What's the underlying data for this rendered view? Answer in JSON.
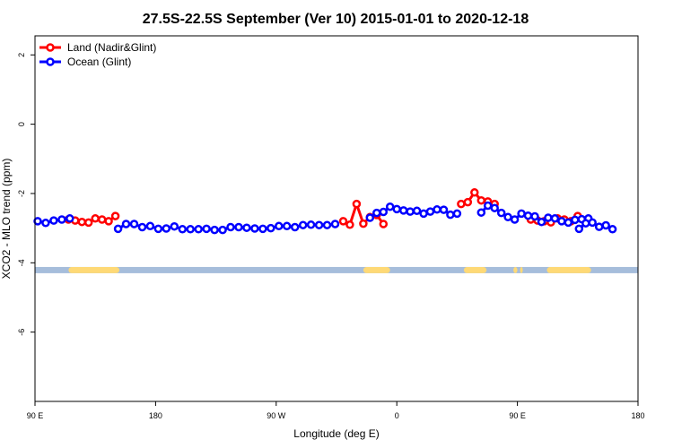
{
  "chart_data": {
    "type": "line",
    "title": "27.5S-22.5S September (Ver 10)   2015-01-01 to 2020-12-18",
    "xlabel": "Longitude (deg E)",
    "ylabel": "XCO2 - MLO trend (ppm)",
    "x_axis": {
      "range": [
        90,
        450
      ],
      "ticks": [
        {
          "value": 90,
          "label": "90 E"
        },
        {
          "value": 180,
          "label": "180"
        },
        {
          "value": 270,
          "label": "90 W"
        },
        {
          "value": 360,
          "label": "0"
        },
        {
          "value": 450,
          "label": "90 E"
        },
        {
          "value": 540,
          "label": "180"
        }
      ]
    },
    "y_axis": {
      "range": [
        -8,
        2.5
      ],
      "ticks": [
        {
          "value": 2,
          "label": "2"
        },
        {
          "value": 0,
          "label": "0"
        },
        {
          "value": -2,
          "label": "-2"
        },
        {
          "value": -4,
          "label": "-4"
        },
        {
          "value": -6,
          "label": "-6"
        }
      ]
    },
    "x_range": [
      90,
      540
    ],
    "y_range": [
      -8.0,
      2.55
    ],
    "grid": false,
    "legend_position": "top-left",
    "series": [
      {
        "name": "Land (Nadir&Glint)",
        "color": "#ff0000",
        "segments": [
          [
            [
              115,
              -2.75
            ],
            [
              120,
              -2.78
            ],
            [
              125,
              -2.82
            ],
            [
              130,
              -2.84
            ],
            [
              135,
              -2.72
            ],
            [
              140,
              -2.75
            ],
            [
              145,
              -2.8
            ],
            [
              150,
              -2.65
            ]
          ],
          [
            [
              320,
              -2.8
            ],
            [
              325,
              -2.9
            ],
            [
              330,
              -2.3
            ],
            [
              335,
              -2.87
            ],
            [
              340,
              -2.68
            ],
            [
              345,
              -2.62
            ],
            [
              350,
              -2.88
            ]
          ],
          [
            [
              408,
              -2.3
            ],
            [
              413,
              -2.25
            ],
            [
              418,
              -1.97
            ],
            [
              423,
              -2.2
            ],
            [
              428,
              -2.23
            ],
            [
              433,
              -2.3
            ]
          ],
          [
            [
              460,
              -2.75
            ],
            [
              465,
              -2.78
            ],
            [
              470,
              -2.8
            ],
            [
              475,
              -2.83
            ],
            [
              480,
              -2.72
            ],
            [
              485,
              -2.75
            ],
            [
              490,
              -2.8
            ],
            [
              495,
              -2.65
            ]
          ]
        ]
      },
      {
        "name": "Ocean (Glint)",
        "color": "#0000ff",
        "segments": [
          [
            [
              92,
              -2.8
            ],
            [
              98,
              -2.85
            ],
            [
              104,
              -2.78
            ],
            [
              110,
              -2.75
            ],
            [
              116,
              -2.72
            ]
          ],
          [
            [
              152,
              -3.02
            ],
            [
              158,
              -2.88
            ],
            [
              164,
              -2.88
            ],
            [
              170,
              -2.97
            ],
            [
              176,
              -2.94
            ],
            [
              182,
              -3.02
            ],
            [
              188,
              -3.01
            ],
            [
              194,
              -2.95
            ],
            [
              200,
              -3.03
            ],
            [
              206,
              -3.03
            ],
            [
              212,
              -3.03
            ],
            [
              218,
              -3.02
            ],
            [
              224,
              -3.05
            ],
            [
              230,
              -3.05
            ],
            [
              236,
              -2.97
            ],
            [
              242,
              -2.97
            ],
            [
              248,
              -2.99
            ],
            [
              254,
              -3.01
            ],
            [
              260,
              -3.02
            ],
            [
              266,
              -3.0
            ],
            [
              272,
              -2.94
            ],
            [
              278,
              -2.94
            ],
            [
              284,
              -2.97
            ],
            [
              290,
              -2.91
            ],
            [
              296,
              -2.9
            ],
            [
              302,
              -2.91
            ],
            [
              308,
              -2.91
            ],
            [
              314,
              -2.88
            ]
          ],
          [
            [
              340,
              -2.7
            ],
            [
              345,
              -2.56
            ],
            [
              350,
              -2.53
            ],
            [
              355,
              -2.38
            ],
            [
              360,
              -2.45
            ],
            [
              365,
              -2.49
            ],
            [
              370,
              -2.52
            ],
            [
              375,
              -2.5
            ],
            [
              380,
              -2.58
            ],
            [
              385,
              -2.52
            ],
            [
              390,
              -2.46
            ],
            [
              395,
              -2.47
            ],
            [
              400,
              -2.61
            ],
            [
              405,
              -2.58
            ]
          ],
          [
            [
              423,
              -2.55
            ],
            [
              428,
              -2.35
            ],
            [
              433,
              -2.42
            ],
            [
              438,
              -2.56
            ],
            [
              443,
              -2.68
            ],
            [
              448,
              -2.75
            ],
            [
              453,
              -2.58
            ],
            [
              458,
              -2.64
            ],
            [
              463,
              -2.66
            ],
            [
              468,
              -2.82
            ],
            [
              473,
              -2.7
            ],
            [
              478,
              -2.72
            ],
            [
              483,
              -2.8
            ],
            [
              488,
              -2.84
            ],
            [
              493,
              -2.76
            ],
            [
              498,
              -2.74
            ],
            [
              503,
              -2.72
            ]
          ],
          [
            [
              496,
              -3.02
            ],
            [
              501,
              -2.86
            ],
            [
              506,
              -2.84
            ],
            [
              511,
              -2.96
            ],
            [
              516,
              -2.92
            ],
            [
              521,
              -3.03
            ]
          ]
        ]
      }
    ],
    "land_mask_band": {
      "y_top": -4.12,
      "y_bottom": -4.3,
      "ocean_color": "#a6bddb",
      "land_color": "#fed976",
      "land_segments": [
        [
          115,
          153
        ],
        [
          335,
          355
        ],
        [
          410,
          427
        ],
        [
          447,
          450
        ],
        [
          452,
          454
        ],
        [
          472,
          505
        ]
      ]
    }
  }
}
